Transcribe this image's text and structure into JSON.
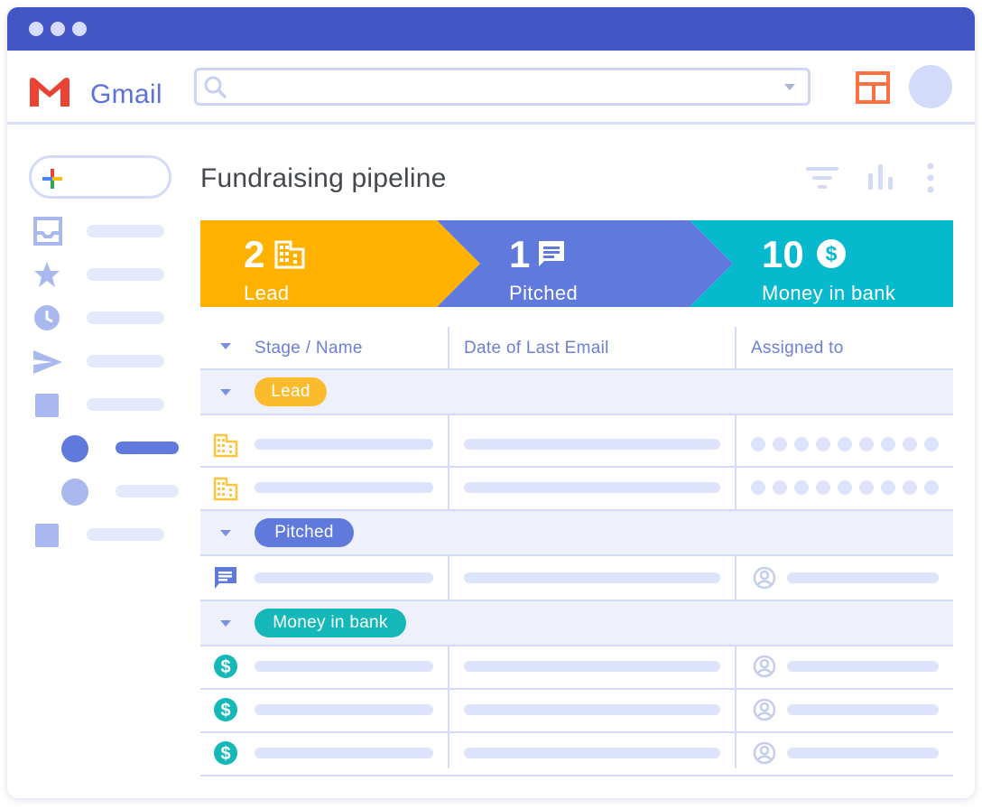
{
  "app": {
    "name": "Gmail"
  },
  "search": {
    "placeholder": ""
  },
  "main": {
    "title": "Fundraising pipeline",
    "pipeline": [
      {
        "count": "2",
        "label": "Lead",
        "color": "#ffb100",
        "icon": "building-icon"
      },
      {
        "count": "1",
        "label": "Pitched",
        "color": "#5f79dc",
        "icon": "chat-icon"
      },
      {
        "count": "10",
        "label": "Money in bank",
        "color": "#06b9cc",
        "icon": "dollar-icon"
      }
    ],
    "table": {
      "columns": [
        "Stage / Name",
        "Date of Last Email",
        "Assigned to"
      ],
      "groups": [
        {
          "label": "Lead",
          "color": "#fbbb2c"
        },
        {
          "label": "Pitched",
          "color": "#5f79dc"
        },
        {
          "label": "Money in bank",
          "color": "#14b8b9"
        }
      ]
    }
  },
  "colors": {
    "titlebar": "#4257c5",
    "accent": "#5b72d8",
    "placeholder": "#dde3fb"
  }
}
